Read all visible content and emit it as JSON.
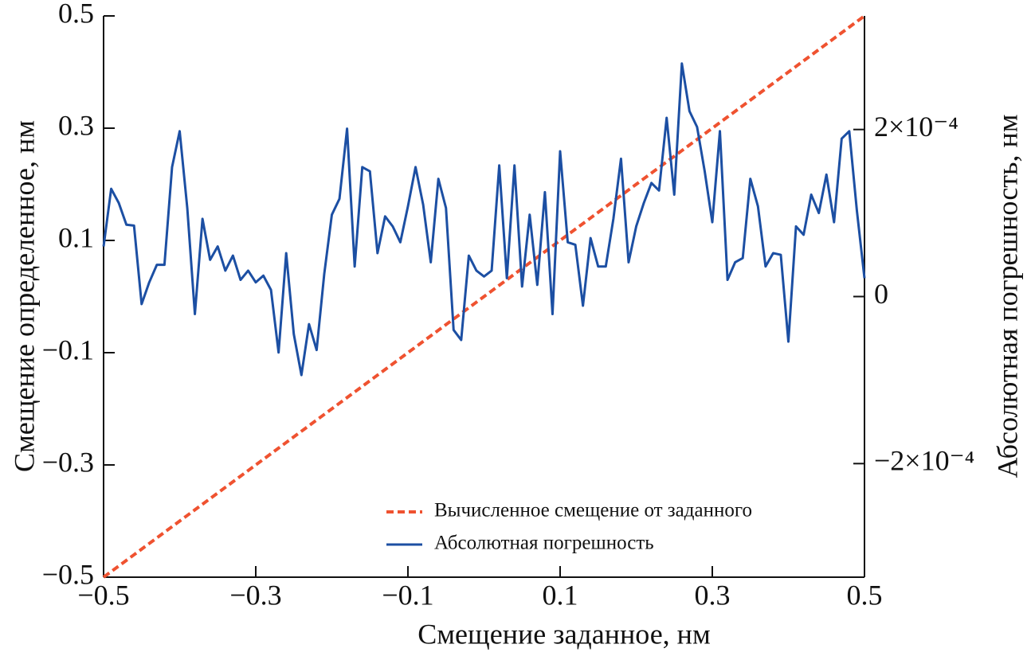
{
  "chart_data": {
    "type": "line",
    "xlabel": "Смещение заданное, нм",
    "ylabel": "Смещение определенное, нм",
    "y2label": "Абсолютная погрешность, нм",
    "xlim": [
      -0.5,
      0.5
    ],
    "ylim": [
      -0.5,
      0.5
    ],
    "y2lim": [
      -0.000336,
      0.000336
    ],
    "xticks": [
      {
        "value": -0.5,
        "label": "−0.5"
      },
      {
        "value": -0.3,
        "label": "−0.3"
      },
      {
        "value": -0.1,
        "label": "−0.1"
      },
      0.1,
      0.3,
      0.5
    ],
    "yticks": [
      {
        "value": -0.5,
        "label": "−0.5"
      },
      {
        "value": -0.3,
        "label": "−0.3"
      },
      {
        "value": -0.1,
        "label": "−0.1"
      },
      0.1,
      0.3,
      0.5
    ],
    "y2ticks": [
      {
        "value": -0.0002,
        "label": "−2×10⁻⁴"
      },
      0,
      {
        "value": 0.0002,
        "label": "2×10⁻⁴"
      }
    ],
    "legend": "lower right",
    "x": [
      -0.5,
      -0.49,
      -0.48,
      -0.47,
      -0.46,
      -0.45,
      -0.44,
      -0.43,
      -0.42,
      -0.41,
      -0.4,
      -0.39,
      -0.38,
      -0.37,
      -0.36,
      -0.35,
      -0.34,
      -0.33,
      -0.32,
      -0.31,
      -0.3,
      -0.29,
      -0.28,
      -0.27,
      -0.26,
      -0.25,
      -0.24,
      -0.23,
      -0.22,
      -0.21,
      -0.2,
      -0.19,
      -0.18,
      -0.17,
      -0.16,
      -0.15,
      -0.14,
      -0.13,
      -0.12,
      -0.11,
      -0.1,
      -0.09,
      -0.08,
      -0.07,
      -0.06,
      -0.05,
      -0.04,
      -0.03,
      -0.02,
      -0.01,
      0,
      0.01,
      0.02,
      0.03,
      0.04,
      0.05,
      0.06,
      0.07,
      0.08,
      0.09,
      0.1,
      0.11,
      0.12,
      0.13,
      0.14,
      0.15,
      0.16,
      0.17,
      0.18,
      0.19,
      0.2,
      0.21,
      0.22,
      0.23,
      0.24,
      0.25,
      0.26,
      0.27,
      0.28,
      0.29,
      0.3,
      0.31,
      0.32,
      0.33,
      0.34,
      0.35,
      0.36,
      0.37,
      0.38,
      0.39,
      0.4,
      0.41,
      0.42,
      0.43,
      0.44,
      0.45,
      0.46,
      0.47,
      0.48,
      0.49,
      0.5
    ],
    "series": [
      {
        "name": "Вычисленное смещение от заданного",
        "color": "#ef5230",
        "dash": true,
        "axis": "y",
        "values": [
          -0.5,
          -0.49,
          -0.48,
          -0.47,
          -0.46,
          -0.45,
          -0.44,
          -0.43,
          -0.42,
          -0.41,
          -0.4,
          -0.39,
          -0.38,
          -0.37,
          -0.36,
          -0.35,
          -0.34,
          -0.33,
          -0.32,
          -0.31,
          -0.3,
          -0.29,
          -0.28,
          -0.27,
          -0.26,
          -0.25,
          -0.24,
          -0.23,
          -0.22,
          -0.21,
          -0.2,
          -0.19,
          -0.18,
          -0.17,
          -0.16,
          -0.15,
          -0.14,
          -0.13,
          -0.12,
          -0.11,
          -0.1,
          -0.09,
          -0.08,
          -0.07,
          -0.06,
          -0.05,
          -0.04,
          -0.03,
          -0.02,
          -0.01,
          0,
          0.01,
          0.02,
          0.03,
          0.04,
          0.05,
          0.06,
          0.07,
          0.08,
          0.09,
          0.1,
          0.11,
          0.12,
          0.13,
          0.14,
          0.15,
          0.16,
          0.17,
          0.18,
          0.19,
          0.2,
          0.21,
          0.22,
          0.23,
          0.24,
          0.25,
          0.26,
          0.27,
          0.28,
          0.29,
          0.3,
          0.31,
          0.32,
          0.33,
          0.34,
          0.35,
          0.36,
          0.37,
          0.38,
          0.39,
          0.4,
          0.41,
          0.42,
          0.43,
          0.44,
          0.45,
          0.46,
          0.47,
          0.48,
          0.49,
          0.5
        ]
      },
      {
        "name": "Абсолютная погрешность",
        "color": "#1c4fa3",
        "dash": false,
        "axis": "y2",
        "values": [
          6e-05,
          0.000129,
          0.000112,
          8.6e-05,
          8.5e-05,
          -9e-06,
          1.7e-05,
          3.8e-05,
          3.8e-05,
          0.000155,
          0.000198,
          0.000106,
          -2.1e-05,
          9.3e-05,
          4.4e-05,
          6e-05,
          3.1e-05,
          4.9e-05,
          2e-05,
          3.1e-05,
          1.7e-05,
          2.5e-05,
          8e-06,
          -6.7e-05,
          5.2e-05,
          -4.5e-05,
          -9.4e-05,
          -3.3e-05,
          -6.4e-05,
          2.7e-05,
          9.8e-05,
          0.000117,
          0.000201,
          3.6e-05,
          0.000155,
          0.00015,
          5.2e-05,
          9.6e-05,
          8.4e-05,
          6.5e-05,
          0.000108,
          0.000155,
          0.00011,
          4.1e-05,
          0.000141,
          0.000106,
          -4e-05,
          -5.2e-05,
          4.9e-05,
          3.1e-05,
          2.4e-05,
          3.1e-05,
          0.000157,
          2.2e-05,
          0.000157,
          1.2e-05,
          9.8e-05,
          1.4e-05,
          0.000125,
          -2.1e-05,
          0.000174,
          6.5e-05,
          6.2e-05,
          -1.1e-05,
          7e-05,
          3.6e-05,
          3.6e-05,
          9.3e-05,
          0.000165,
          4.1e-05,
          8.4e-05,
          0.000112,
          0.000136,
          0.000127,
          0.000214,
          0.000122,
          0.000279,
          0.000222,
          0.000203,
          0.00015,
          8.9e-05,
          0.000198,
          2e-05,
          4.1e-05,
          4.6e-05,
          0.000141,
          0.000108,
          3.6e-05,
          5.2e-05,
          5e-05,
          -5.4e-05,
          8.4e-05,
          7.4e-05,
          0.000122,
          0.0001,
          0.000146,
          8.9e-05,
          0.000189,
          0.000198,
          0.000103,
          2.2e-05
        ]
      }
    ]
  }
}
